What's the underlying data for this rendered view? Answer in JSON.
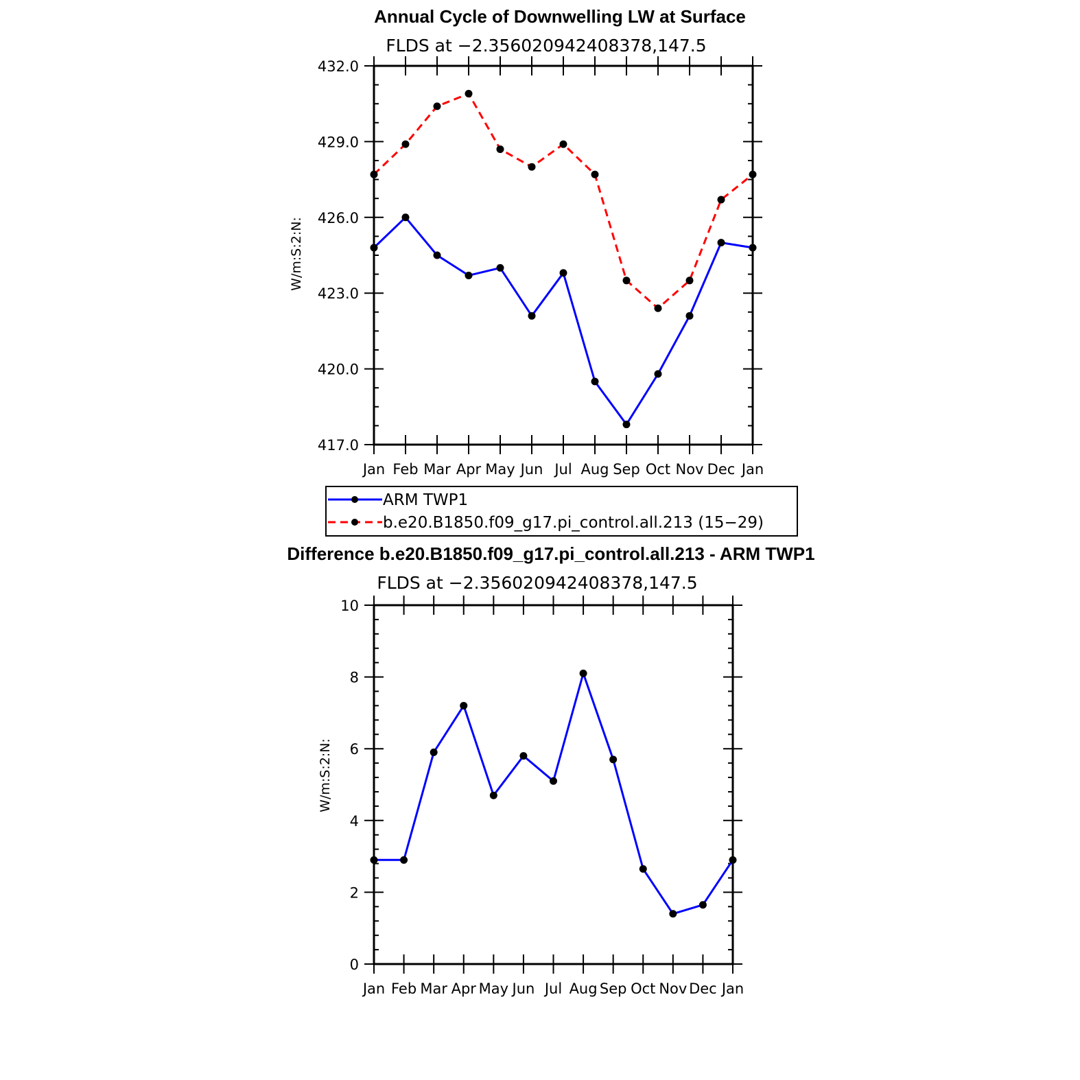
{
  "chart_data": [
    {
      "type": "line",
      "title": "Annual Cycle of Downwelling LW at Surface",
      "subtitle": "FLDS at −2.356020942408378,147.5",
      "ylabel": "W/m:S:2:N:",
      "xlabel": "",
      "categories": [
        "Jan",
        "Feb",
        "Mar",
        "Apr",
        "May",
        "Jun",
        "Jul",
        "Aug",
        "Sep",
        "Oct",
        "Nov",
        "Dec",
        "Jan"
      ],
      "ylim": [
        417.0,
        432.0
      ],
      "yticks": [
        "417.0",
        "420.0",
        "423.0",
        "426.0",
        "429.0",
        "432.0"
      ],
      "series": [
        {
          "name": "ARM  TWP1",
          "color": "#0000ff",
          "dash": "solid",
          "values": [
            424.8,
            426.0,
            424.5,
            423.7,
            424.0,
            422.1,
            423.8,
            419.5,
            417.8,
            419.8,
            422.1,
            425.0,
            424.8
          ]
        },
        {
          "name": "b.e20.B1850.f09_g17.pi_control.all.213 (15−29)",
          "color": "#ff0000",
          "dash": "dashed",
          "values": [
            427.7,
            428.9,
            430.4,
            430.9,
            428.7,
            428.0,
            428.9,
            427.7,
            423.5,
            422.4,
            423.5,
            426.7,
            427.7
          ]
        }
      ],
      "legend": "below",
      "grid": false
    },
    {
      "type": "line",
      "title": "Difference b.e20.B1850.f09_g17.pi_control.all.213 - ARM TWP1",
      "subtitle": "FLDS at −2.356020942408378,147.5",
      "ylabel": "W/m:S:2:N:",
      "xlabel": "",
      "categories": [
        "Jan",
        "Feb",
        "Mar",
        "Apr",
        "May",
        "Jun",
        "Jul",
        "Aug",
        "Sep",
        "Oct",
        "Nov",
        "Dec",
        "Jan"
      ],
      "ylim": [
        0,
        10
      ],
      "yticks": [
        "0",
        "2",
        "4",
        "6",
        "8",
        "10"
      ],
      "series": [
        {
          "color": "#0000ff",
          "dash": "solid",
          "values": [
            2.9,
            2.9,
            5.9,
            7.2,
            4.7,
            5.8,
            5.1,
            8.1,
            5.7,
            2.65,
            1.4,
            1.65,
            2.9
          ]
        }
      ],
      "grid": false
    }
  ]
}
